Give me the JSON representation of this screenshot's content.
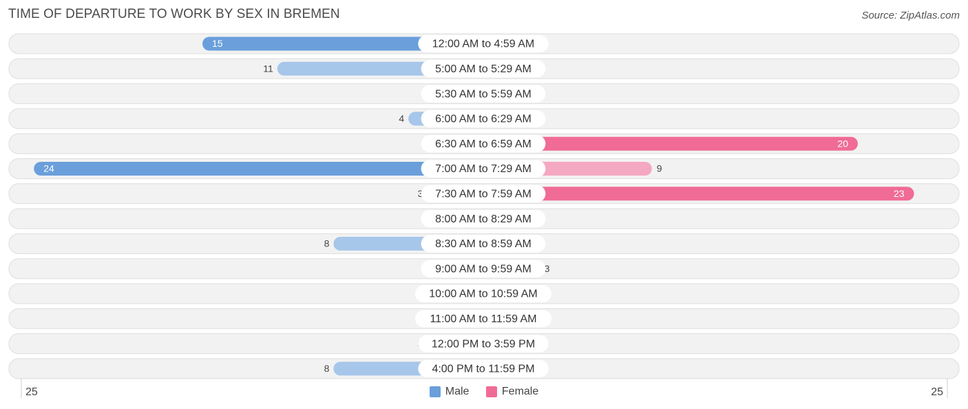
{
  "header": {
    "title": "TIME OF DEPARTURE TO WORK BY SEX IN BREMEN",
    "source": "Source: ZipAtlas.com"
  },
  "legend": {
    "male_label": "Male",
    "female_label": "Female"
  },
  "axis": {
    "left_label": "25",
    "right_label": "25"
  },
  "colors": {
    "male": "#6a9fdb",
    "male_light": "#a6c6ea",
    "female": "#f06b95",
    "female_light": "#f5a8c1",
    "row_bg": "#f2f2f2",
    "row_border": "#dddddd"
  },
  "chart_data": {
    "type": "bar",
    "orientation": "horizontal-diverging",
    "title": "TIME OF DEPARTURE TO WORK BY SEX IN BREMEN",
    "xlim": [
      -25,
      25
    ],
    "categories": [
      "12:00 AM to 4:59 AM",
      "5:00 AM to 5:29 AM",
      "5:30 AM to 5:59 AM",
      "6:00 AM to 6:29 AM",
      "6:30 AM to 6:59 AM",
      "7:00 AM to 7:29 AM",
      "7:30 AM to 7:59 AM",
      "8:00 AM to 8:29 AM",
      "8:30 AM to 8:59 AM",
      "9:00 AM to 9:59 AM",
      "10:00 AM to 10:59 AM",
      "11:00 AM to 11:59 AM",
      "12:00 PM to 3:59 PM",
      "4:00 PM to 11:59 PM"
    ],
    "series": [
      {
        "name": "Male",
        "values": [
          15,
          11,
          0,
          4,
          0,
          24,
          3,
          1,
          8,
          0,
          0,
          0,
          3,
          8
        ]
      },
      {
        "name": "Female",
        "values": [
          0,
          0,
          0,
          0,
          20,
          9,
          23,
          0,
          0,
          3,
          1,
          0,
          2,
          0
        ]
      }
    ],
    "legend_position": "bottom-center"
  }
}
